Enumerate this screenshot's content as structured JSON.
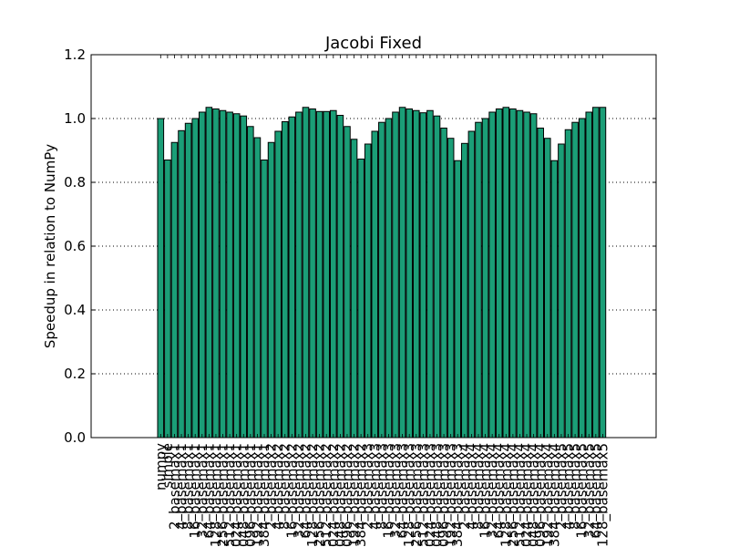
{
  "chart_data": {
    "type": "bar",
    "title": "Jacobi Fixed",
    "xlabel": "",
    "ylabel": "Speedup in relation to NumPy",
    "ylim": [
      0,
      1.2
    ],
    "yticks": [
      "0.0",
      "0.2",
      "0.4",
      "0.6",
      "0.8",
      "1.0",
      "1.2"
    ],
    "grid": "horizontal dotted",
    "bar_color": "#1b9e77",
    "categories": [
      "numpy",
      "simple",
      "2_basemax1",
      "4_basemax1",
      "8_basemax1",
      "16_basemax1",
      "32_basemax1",
      "64_basemax1",
      "128_basemax1",
      "256_basemax1",
      "512_basemax1",
      "1024_basemax1",
      "2048_basemax1",
      "4096_basemax1",
      "8192_basemax1",
      "16384_basemax1",
      "2_basemax2",
      "4_basemax2",
      "8_basemax2",
      "16_basemax2",
      "32_basemax2",
      "64_basemax2",
      "128_basemax2",
      "256_basemax2",
      "512_basemax2",
      "1024_basemax2",
      "2048_basemax2",
      "4096_basemax2",
      "8192_basemax2",
      "16384_basemax2",
      "2_basemax3",
      "4_basemax3",
      "8_basemax3",
      "16_basemax3",
      "32_basemax3",
      "64_basemax3",
      "128_basemax3",
      "256_basemax3",
      "512_basemax3",
      "1024_basemax3",
      "2048_basemax3",
      "4096_basemax3",
      "8192_basemax3",
      "16384_basemax3",
      "2_basemax4",
      "4_basemax4",
      "8_basemax4",
      "16_basemax4",
      "32_basemax4",
      "64_basemax4",
      "128_basemax4",
      "256_basemax4",
      "512_basemax4",
      "1024_basemax4",
      "2048_basemax4",
      "4096_basemax4",
      "8192_basemax4",
      "16384_basemax4",
      "2_basemax5",
      "4_basemax5",
      "8_basemax5",
      "16_basemax5",
      "32_basemax5",
      "64_basemax5",
      "128_basemax5"
    ],
    "values": [
      1.0,
      0.87,
      0.925,
      0.962,
      0.985,
      1.0,
      1.02,
      1.035,
      1.03,
      1.025,
      1.02,
      1.015,
      1.008,
      0.975,
      0.94,
      0.87,
      0.925,
      0.96,
      0.99,
      1.005,
      1.02,
      1.035,
      1.03,
      1.022,
      1.022,
      1.025,
      1.01,
      0.975,
      0.935,
      0.873,
      0.92,
      0.96,
      0.988,
      1.0,
      1.02,
      1.035,
      1.03,
      1.025,
      1.018,
      1.025,
      1.008,
      0.97,
      0.938,
      0.868,
      0.922,
      0.96,
      0.988,
      1.0,
      1.02,
      1.03,
      1.035,
      1.03,
      1.025,
      1.02,
      1.015,
      0.97,
      0.938,
      0.868,
      0.92,
      0.965,
      0.988,
      1.0,
      1.02,
      1.035,
      1.035
    ]
  }
}
